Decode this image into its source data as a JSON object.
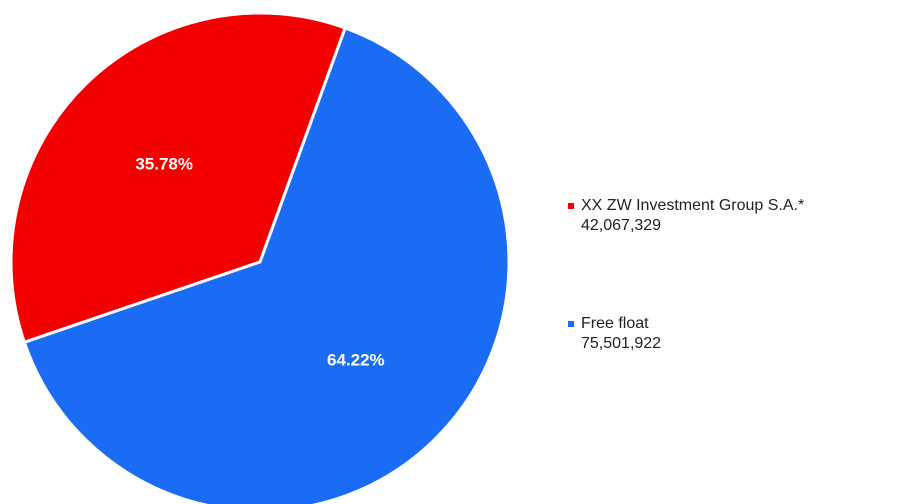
{
  "chart_data": {
    "type": "pie",
    "slices": [
      {
        "name": "XX ZW Investment Group S.A.*",
        "value": 42067329,
        "value_label": "42,067,329",
        "percent_label": "35.78%",
        "color": "#f50000"
      },
      {
        "name": "Free float",
        "value": 75501922,
        "value_label": "75,501,922",
        "percent_label": "64.22%",
        "color": "#1a6cf5"
      }
    ],
    "legend_position": "right",
    "start_angle_deg": 20
  }
}
